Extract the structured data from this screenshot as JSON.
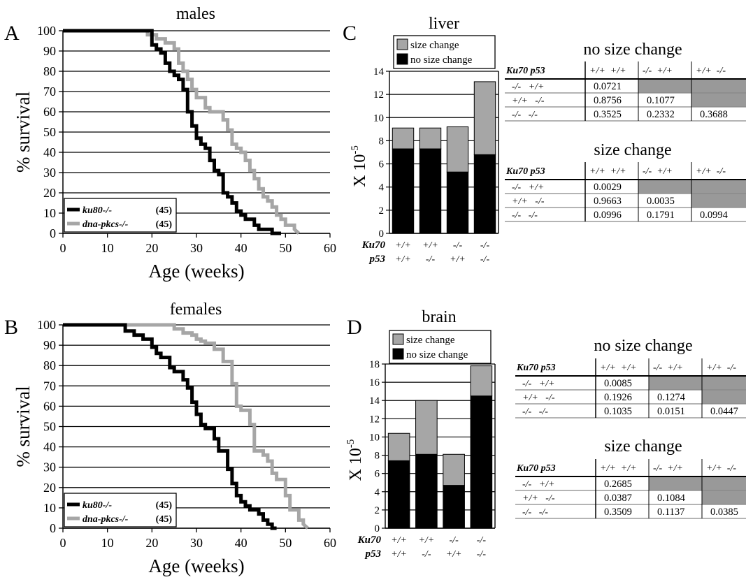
{
  "panels": {
    "A": {
      "letter": "A"
    },
    "B": {
      "letter": "B"
    },
    "C": {
      "letter": "C"
    },
    "D": {
      "letter": "D"
    }
  },
  "colors": {
    "ku80": "#000000",
    "dnapk": "#a6a6a6",
    "size_change": "#a6a6a6",
    "no_size_change": "#000000",
    "table_shade": "#999999"
  },
  "chart_data": [
    {
      "panel": "A",
      "type": "line",
      "title": "males",
      "xlabel": "Age (weeks)",
      "ylabel": "% survival",
      "xlim": [
        0,
        60
      ],
      "ylim": [
        0,
        100
      ],
      "xticks": [
        "0",
        "10",
        "20",
        "30",
        "40",
        "50",
        "60"
      ],
      "yticks": [
        "0",
        "10",
        "20",
        "30",
        "40",
        "50",
        "60",
        "70",
        "80",
        "90",
        "100"
      ],
      "grid": true,
      "legend_position": "bottom-left",
      "series": [
        {
          "name": "ku80-/-",
          "n_label": "(45)",
          "color": "#000000",
          "x": [
            0,
            20,
            20,
            21,
            21,
            22,
            22,
            23,
            23,
            24,
            24,
            25,
            25,
            26,
            26,
            27,
            27,
            28,
            28,
            29,
            29,
            30,
            30,
            31,
            31,
            32,
            32,
            33,
            33,
            34,
            34,
            35,
            35,
            36,
            36,
            37,
            37,
            38,
            38,
            39,
            39,
            40,
            40,
            41,
            41,
            43,
            43,
            44,
            44,
            47,
            47,
            48,
            48,
            49,
            49
          ],
          "y": [
            100,
            100,
            93,
            93,
            91,
            91,
            89,
            89,
            84,
            84,
            80,
            80,
            78,
            78,
            76,
            76,
            71,
            71,
            60,
            60,
            53,
            53,
            47,
            47,
            44,
            44,
            42,
            42,
            36,
            36,
            31,
            31,
            29,
            29,
            20,
            20,
            18,
            18,
            15,
            15,
            11,
            11,
            9,
            9,
            7,
            7,
            4,
            4,
            2,
            2,
            0,
            0,
            0,
            0,
            0
          ]
        },
        {
          "name": "dna-pkcs-/-",
          "n_label": "(45)",
          "color": "#a6a6a6",
          "x": [
            0,
            19,
            19,
            21,
            21,
            23,
            23,
            25,
            25,
            26,
            26,
            27,
            27,
            28,
            28,
            29,
            29,
            30,
            30,
            32,
            32,
            33,
            33,
            34,
            34,
            36,
            36,
            37,
            37,
            38,
            38,
            39,
            39,
            40,
            40,
            41,
            41,
            42,
            42,
            43,
            43,
            44,
            44,
            45,
            45,
            46,
            46,
            47,
            47,
            48,
            48,
            49,
            49,
            50,
            50,
            52,
            52,
            53
          ],
          "y": [
            100,
            100,
            98,
            98,
            96,
            96,
            94,
            94,
            91,
            91,
            84,
            84,
            80,
            80,
            76,
            76,
            71,
            71,
            67,
            67,
            62,
            62,
            60,
            60,
            60,
            60,
            56,
            56,
            51,
            51,
            44,
            44,
            42,
            42,
            40,
            40,
            36,
            36,
            31,
            31,
            27,
            27,
            22,
            22,
            18,
            18,
            16,
            16,
            13,
            13,
            9,
            9,
            7,
            7,
            4,
            4,
            2,
            0
          ]
        }
      ]
    },
    {
      "panel": "B",
      "type": "line",
      "title": "females",
      "xlabel": "Age (weeks)",
      "ylabel": "% survival",
      "xlim": [
        0,
        60
      ],
      "ylim": [
        0,
        100
      ],
      "xticks": [
        "0",
        "10",
        "20",
        "30",
        "40",
        "50",
        "60"
      ],
      "yticks": [
        "0",
        "10",
        "20",
        "30",
        "40",
        "50",
        "60",
        "70",
        "80",
        "90",
        "100"
      ],
      "grid": true,
      "legend_position": "bottom-left",
      "series": [
        {
          "name": "ku80-/-",
          "n_label": "(45)",
          "color": "#000000",
          "x": [
            0,
            14,
            14,
            16,
            16,
            18,
            18,
            20,
            20,
            21,
            21,
            22,
            22,
            24,
            24,
            25,
            25,
            27,
            27,
            28,
            28,
            29,
            29,
            30,
            30,
            31,
            31,
            32,
            32,
            34,
            34,
            35,
            35,
            37,
            37,
            38,
            38,
            39,
            39,
            40,
            40,
            41,
            41,
            42,
            42,
            44,
            44,
            45,
            45,
            46,
            46,
            47,
            47,
            48,
            48
          ],
          "y": [
            100,
            100,
            97,
            97,
            95,
            95,
            93,
            93,
            89,
            89,
            86,
            86,
            84,
            84,
            79,
            79,
            77,
            77,
            73,
            73,
            69,
            69,
            62,
            62,
            56,
            56,
            51,
            51,
            49,
            49,
            44,
            44,
            38,
            38,
            29,
            29,
            22,
            22,
            16,
            16,
            13,
            13,
            11,
            11,
            9,
            9,
            7,
            7,
            4,
            4,
            2,
            2,
            0,
            0,
            0
          ]
        },
        {
          "name": "dna-pkcs-/-",
          "n_label": "(45)",
          "color": "#a6a6a6",
          "x": [
            0,
            25,
            25,
            27,
            27,
            29,
            29,
            30,
            30,
            31,
            31,
            32,
            32,
            34,
            34,
            36,
            36,
            38,
            38,
            39,
            39,
            40,
            40,
            42,
            42,
            43,
            43,
            45,
            45,
            46,
            46,
            47,
            47,
            48,
            48,
            50,
            50,
            51,
            51,
            53,
            53,
            54,
            54,
            55
          ],
          "y": [
            100,
            100,
            98,
            98,
            96,
            96,
            95,
            95,
            93,
            93,
            92,
            92,
            91,
            91,
            88,
            88,
            82,
            82,
            71,
            71,
            60,
            60,
            58,
            58,
            51,
            51,
            38,
            38,
            36,
            36,
            33,
            33,
            27,
            27,
            24,
            24,
            16,
            16,
            9,
            9,
            4,
            4,
            2,
            0
          ]
        }
      ]
    },
    {
      "panel": "C",
      "type": "bar",
      "stacked": true,
      "title": "liver",
      "ylabel_main": "X 10",
      "ylabel_exp": "-5",
      "ylim": [
        0,
        14
      ],
      "yticks": [
        "0",
        "2",
        "4",
        "6",
        "8",
        "10",
        "12",
        "14"
      ],
      "grid": true,
      "legend_position": "top",
      "row_labels": [
        "Ku70",
        "p53"
      ],
      "categories": [
        [
          "+/+",
          "+/+"
        ],
        [
          "+/+",
          "-/-"
        ],
        [
          "-/-",
          "+/+"
        ],
        [
          "-/-",
          "-/-"
        ]
      ],
      "series": [
        {
          "name": "no size change",
          "color": "#000000",
          "values": [
            7.3,
            7.3,
            5.3,
            6.8
          ]
        },
        {
          "name": "size change",
          "color": "#a6a6a6",
          "values": [
            1.8,
            1.8,
            3.9,
            6.3
          ]
        }
      ]
    },
    {
      "panel": "D",
      "type": "bar",
      "stacked": true,
      "title": "brain",
      "ylabel_main": "X 10",
      "ylabel_exp": "-5",
      "ylim": [
        0,
        18
      ],
      "yticks": [
        "0",
        "2",
        "4",
        "6",
        "8",
        "10",
        "12",
        "14",
        "16",
        "18"
      ],
      "grid": true,
      "legend_position": "top",
      "row_labels": [
        "Ku70",
        "p53"
      ],
      "categories": [
        [
          "+/+",
          "+/+"
        ],
        [
          "+/+",
          "-/-"
        ],
        [
          "-/-",
          "+/+"
        ],
        [
          "-/-",
          "-/-"
        ]
      ],
      "series": [
        {
          "name": "no size change",
          "color": "#000000",
          "values": [
            7.4,
            8.1,
            4.7,
            14.5
          ]
        },
        {
          "name": "size change",
          "color": "#a6a6a6",
          "values": [
            3.0,
            5.9,
            3.4,
            3.3
          ]
        }
      ]
    },
    {
      "panel": "C",
      "type": "table",
      "title": "no size change",
      "header": [
        "Ku70 p53",
        "+/+  +/+",
        "-/-  +/+",
        "+/+  -/-"
      ],
      "rows": [
        {
          "genotype": "-/-   +/+",
          "values": [
            "0.0721",
            "",
            ""
          ]
        },
        {
          "genotype": "+/+   -/-",
          "values": [
            "0.8756",
            "0.1077",
            ""
          ]
        },
        {
          "genotype": "-/-   -/-",
          "values": [
            "0.3525",
            "0.2332",
            "0.3688"
          ]
        }
      ]
    },
    {
      "panel": "C",
      "type": "table",
      "title": "size change",
      "header": [
        "Ku70 p53",
        "+/+  +/+",
        "-/-  +/+",
        "+/+  -/-"
      ],
      "rows": [
        {
          "genotype": "-/-   +/+",
          "values": [
            "0.0029",
            "",
            ""
          ]
        },
        {
          "genotype": "+/+   -/-",
          "values": [
            "0.9663",
            "0.0035",
            ""
          ]
        },
        {
          "genotype": "-/-   -/-",
          "values": [
            "0.0996",
            "0.1791",
            "0.0994"
          ]
        }
      ]
    },
    {
      "panel": "D",
      "type": "table",
      "title": "no size change",
      "header": [
        "Ku70 p53",
        "+/+  +/+",
        "-/-  +/+",
        "+/+  -/-"
      ],
      "rows": [
        {
          "genotype": "-/-   +/+",
          "values": [
            "0.0085",
            "",
            ""
          ]
        },
        {
          "genotype": "+/+   -/-",
          "values": [
            "0.1926",
            "0.1274",
            ""
          ]
        },
        {
          "genotype": "-/-   -/-",
          "values": [
            "0.1035",
            "0.0151",
            "0.0447"
          ]
        }
      ]
    },
    {
      "panel": "D",
      "type": "table",
      "title": "size change",
      "header": [
        "Ku70 p53",
        "+/+  +/+",
        "-/-  +/+",
        "+/+  -/-"
      ],
      "rows": [
        {
          "genotype": "-/-   +/+",
          "values": [
            "0.2685",
            "",
            ""
          ]
        },
        {
          "genotype": "+/+   -/-",
          "values": [
            "0.0387",
            "0.1084",
            ""
          ]
        },
        {
          "genotype": "-/-   -/-",
          "values": [
            "0.3509",
            "0.1137",
            "0.0385"
          ]
        }
      ]
    }
  ]
}
